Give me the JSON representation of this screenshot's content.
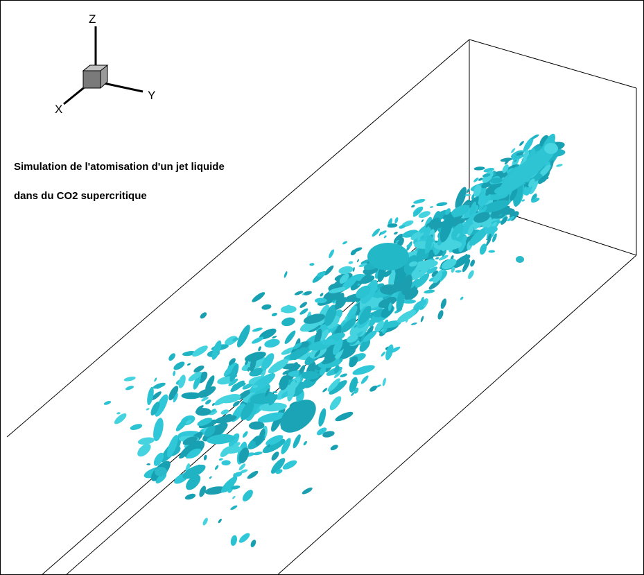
{
  "axes": {
    "z": "Z",
    "y": "Y",
    "x": "X"
  },
  "caption": {
    "line1": "Simulation de l'atomisation d'un jet liquide",
    "line2": "dans du CO2 supercritique"
  }
}
